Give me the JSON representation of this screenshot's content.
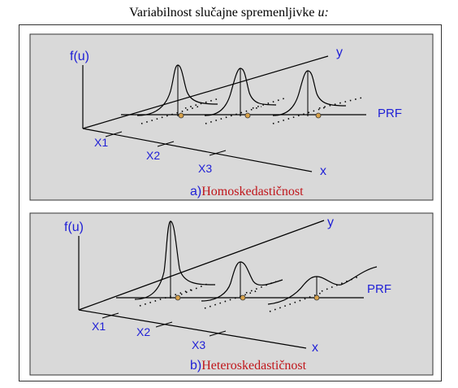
{
  "title": {
    "text": "Variabilnost slučajne spremenljivke ",
    "variable": "u:"
  },
  "panels": [
    {
      "id": "a",
      "ylabel": "f(u)",
      "y_axis": "y",
      "x_axis": "x",
      "prf_label": "PRF",
      "x_ticks": [
        "X1",
        "X2",
        "X3"
      ],
      "caption_prefix": "a)",
      "caption_text": "Homoskedastičnost"
    },
    {
      "id": "b",
      "ylabel": "f(u)",
      "y_axis": "y",
      "x_axis": "x",
      "prf_label": "PRF",
      "x_ticks": [
        "X1",
        "X2",
        "X3"
      ],
      "caption_prefix": "b)",
      "caption_text": "Heteroskedastičnost"
    }
  ],
  "colors": {
    "panel_bg": "#d9d9d9",
    "label_blue": "#1f1fd6",
    "caption_red": "#c0161b",
    "dot_fill": "#d8a24a"
  }
}
